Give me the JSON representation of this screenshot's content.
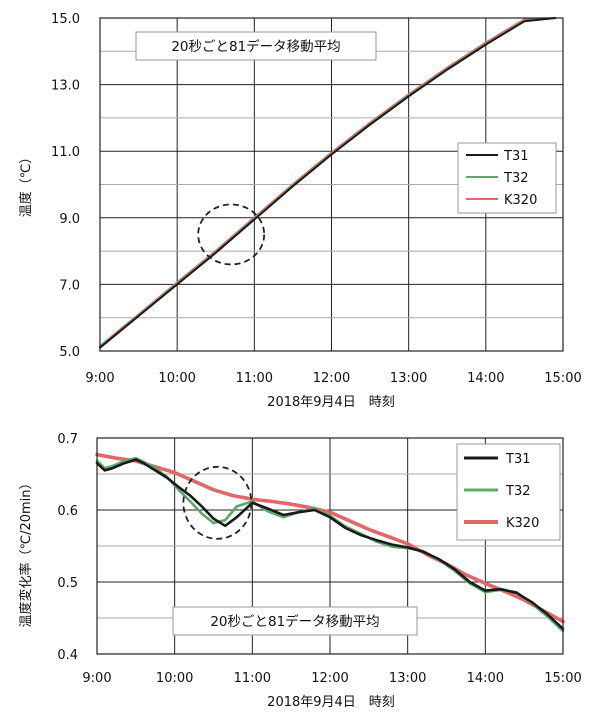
{
  "chart_data": [
    {
      "type": "line",
      "annotation": "20秒ごと81データ移動平均",
      "xlabel": "2018年9月4日　時刻",
      "ylabel": "温度（℃）",
      "xticks": [
        "9:00",
        "10:00",
        "11:00",
        "12:00",
        "13:00",
        "14:00",
        "15:00"
      ],
      "yticks": [
        "5.0",
        "7.0",
        "9.0",
        "11.0",
        "13.0",
        "15.0"
      ],
      "xlim": [
        9,
        15
      ],
      "ylim": [
        5,
        15
      ],
      "grid": true,
      "legend_position": "right",
      "colors": {
        "T31": "#1a1a1a",
        "T32": "#5aa96a",
        "K320": "#e06868"
      },
      "highlight": {
        "x": 10.7,
        "y": 8.5,
        "shape": "dashed-ellipse"
      },
      "series": [
        {
          "name": "T31",
          "x": [
            9.0,
            9.5,
            10.0,
            10.5,
            11.0,
            11.5,
            12.0,
            12.5,
            13.0,
            13.5,
            14.0,
            14.5,
            14.9
          ],
          "y": [
            5.1,
            6.05,
            7.0,
            7.95,
            8.95,
            9.95,
            10.9,
            11.8,
            12.65,
            13.45,
            14.2,
            14.9,
            15.0
          ]
        },
        {
          "name": "T32",
          "x": [
            9.0,
            9.5,
            10.0,
            10.5,
            11.0,
            11.5,
            12.0,
            12.5,
            13.0,
            13.5,
            14.0,
            14.5,
            14.9
          ],
          "y": [
            5.12,
            6.07,
            7.02,
            7.97,
            8.97,
            9.97,
            10.92,
            11.82,
            12.67,
            13.47,
            14.22,
            14.92,
            15.0
          ]
        },
        {
          "name": "K320",
          "x": [
            9.0,
            9.5,
            10.0,
            10.5,
            11.0,
            11.5,
            12.0,
            12.5,
            13.0,
            13.5,
            14.0,
            14.5,
            14.9
          ],
          "y": [
            5.15,
            6.1,
            7.06,
            8.01,
            9.01,
            10.01,
            10.96,
            11.86,
            12.71,
            13.51,
            14.26,
            14.96,
            15.0
          ]
        }
      ]
    },
    {
      "type": "line",
      "annotation": "20秒ごと81データ移動平均",
      "xlabel": "2018年9月4日　時刻",
      "ylabel": "温度変化率（℃/20min）",
      "xticks": [
        "9:00",
        "10:00",
        "11:00",
        "12:00",
        "13:00",
        "14:00",
        "15:00"
      ],
      "yticks": [
        "0.4",
        "0.5",
        "0.6",
        "0.7"
      ],
      "xlim": [
        9,
        15
      ],
      "ylim": [
        0.4,
        0.7
      ],
      "grid": true,
      "legend_position": "right",
      "colors": {
        "T31": "#1a1a1a",
        "T32": "#5aa96a",
        "K320": "#e06868"
      },
      "highlight": {
        "x": 10.55,
        "y": 0.61,
        "shape": "dashed-ellipse"
      },
      "series": [
        {
          "name": "T31",
          "x": [
            9.0,
            9.1,
            9.2,
            9.35,
            9.5,
            9.6,
            9.75,
            9.9,
            10.05,
            10.2,
            10.35,
            10.5,
            10.65,
            10.8,
            11.0,
            11.2,
            11.4,
            11.6,
            11.8,
            12.0,
            12.2,
            12.4,
            12.6,
            12.8,
            13.0,
            13.2,
            13.4,
            13.6,
            13.8,
            14.0,
            14.2,
            14.4,
            14.6,
            14.8,
            15.0
          ],
          "y": [
            0.665,
            0.655,
            0.658,
            0.665,
            0.67,
            0.665,
            0.655,
            0.645,
            0.632,
            0.62,
            0.605,
            0.588,
            0.578,
            0.59,
            0.61,
            0.602,
            0.593,
            0.597,
            0.6,
            0.59,
            0.575,
            0.565,
            0.558,
            0.552,
            0.548,
            0.542,
            0.532,
            0.518,
            0.5,
            0.488,
            0.49,
            0.485,
            0.472,
            0.455,
            0.435
          ]
        },
        {
          "name": "T32",
          "x": [
            9.0,
            9.1,
            9.2,
            9.35,
            9.5,
            9.6,
            9.75,
            9.9,
            10.05,
            10.2,
            10.35,
            10.5,
            10.65,
            10.8,
            11.0,
            11.2,
            11.4,
            11.6,
            11.8,
            12.0,
            12.2,
            12.4,
            12.6,
            12.8,
            13.0,
            13.2,
            13.4,
            13.6,
            13.8,
            14.0,
            14.2,
            14.4,
            14.6,
            14.8,
            15.0
          ],
          "y": [
            0.668,
            0.658,
            0.661,
            0.668,
            0.672,
            0.667,
            0.658,
            0.646,
            0.628,
            0.612,
            0.595,
            0.582,
            0.586,
            0.605,
            0.612,
            0.598,
            0.59,
            0.597,
            0.602,
            0.592,
            0.577,
            0.567,
            0.556,
            0.549,
            0.547,
            0.543,
            0.531,
            0.516,
            0.498,
            0.486,
            0.489,
            0.486,
            0.47,
            0.452,
            0.432
          ]
        },
        {
          "name": "K320",
          "x": [
            9.0,
            9.25,
            9.5,
            9.75,
            10.0,
            10.25,
            10.5,
            10.75,
            11.0,
            11.25,
            11.5,
            11.75,
            12.0,
            12.25,
            12.5,
            12.75,
            13.0,
            13.25,
            13.5,
            13.75,
            14.0,
            14.25,
            14.5,
            14.75,
            15.0
          ],
          "y": [
            0.677,
            0.672,
            0.668,
            0.66,
            0.652,
            0.64,
            0.628,
            0.62,
            0.615,
            0.612,
            0.608,
            0.603,
            0.597,
            0.585,
            0.573,
            0.563,
            0.553,
            0.538,
            0.525,
            0.51,
            0.498,
            0.487,
            0.475,
            0.46,
            0.445
          ]
        }
      ]
    }
  ]
}
